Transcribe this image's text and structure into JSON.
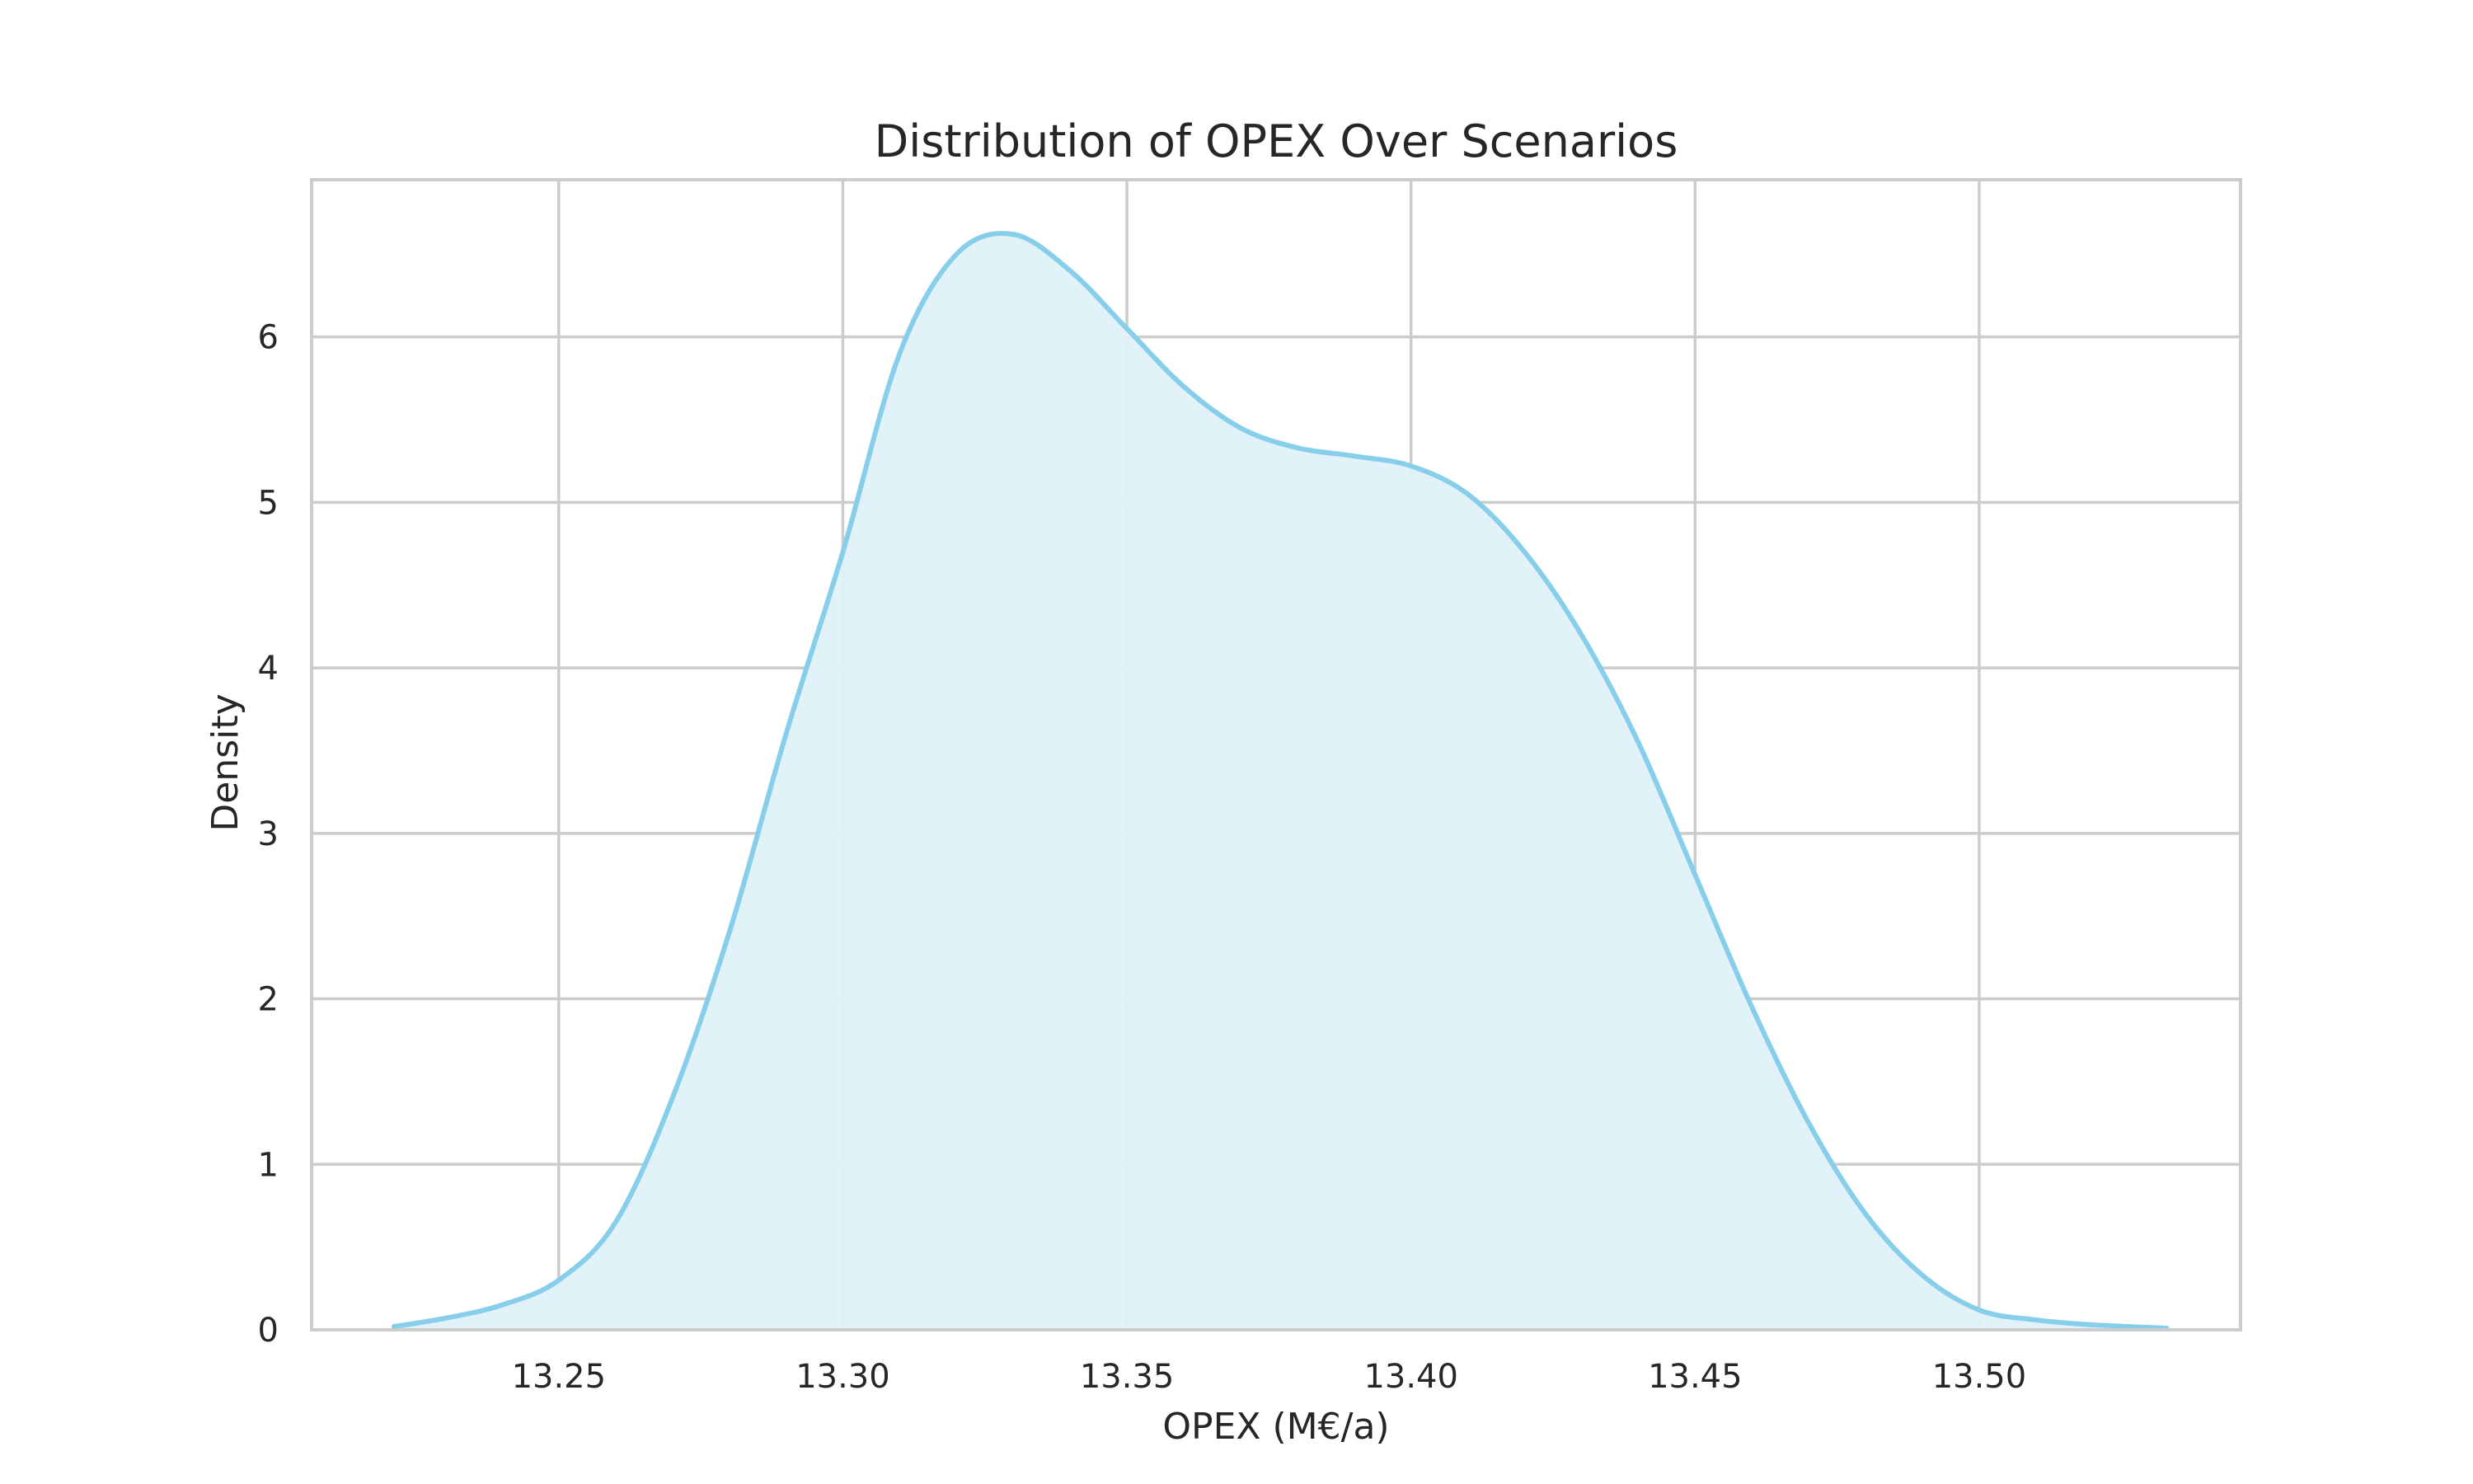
{
  "chart_data": {
    "type": "area",
    "title": "Distribution of OPEX Over Scenarios",
    "xlabel": "OPEX (M€/a)",
    "ylabel": "Density",
    "xlim": [
      13.2065,
      13.546
    ],
    "ylim": [
      0,
      6.95
    ],
    "xticks": [
      "13.25",
      "13.30",
      "13.35",
      "13.40",
      "13.45",
      "13.50"
    ],
    "yticks": [
      "0",
      "1",
      "2",
      "3",
      "4",
      "5",
      "6"
    ],
    "grid": true,
    "legend": "none",
    "line_color": "#87ceeb",
    "fill_color": "#dff1f9",
    "series": [
      {
        "x": [
          13.221,
          13.23,
          13.24,
          13.25,
          13.26,
          13.27,
          13.28,
          13.29,
          13.3,
          13.31,
          13.32,
          13.33,
          13.34,
          13.35,
          13.36,
          13.37,
          13.38,
          13.39,
          13.4,
          13.41,
          13.42,
          13.43,
          13.44,
          13.45,
          13.46,
          13.47,
          13.48,
          13.49,
          13.5,
          13.51,
          13.52,
          13.533
        ],
        "y": [
          0.02,
          0.07,
          0.15,
          0.3,
          0.65,
          1.4,
          2.4,
          3.6,
          4.7,
          5.9,
          6.5,
          6.62,
          6.4,
          6.05,
          5.7,
          5.45,
          5.33,
          5.28,
          5.22,
          5.05,
          4.7,
          4.2,
          3.55,
          2.75,
          1.95,
          1.25,
          0.7,
          0.33,
          0.12,
          0.06,
          0.03,
          0.01
        ]
      }
    ]
  }
}
